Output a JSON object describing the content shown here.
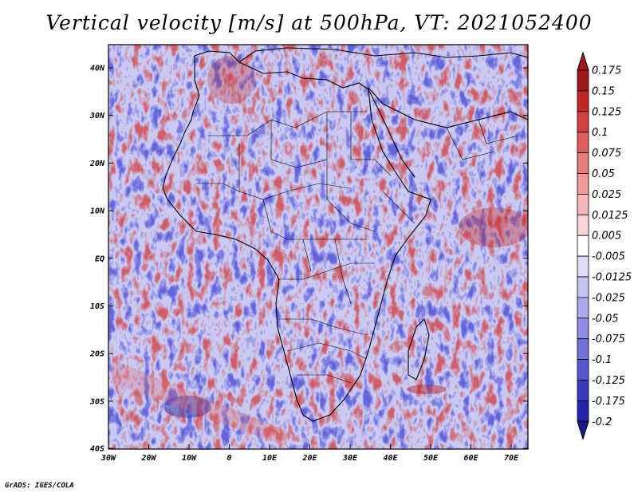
{
  "title": "Vertical velocity [m/s] at 500hPa, VT: 2021052400",
  "credit": "GrADS: IGES/COLA",
  "map": {
    "lat_ticks": [
      "40N",
      "30N",
      "20N",
      "10N",
      "EQ",
      "10S",
      "20S",
      "30S",
      "40S"
    ],
    "lon_ticks": [
      "30W",
      "20W",
      "10W",
      "0",
      "10E",
      "20E",
      "30E",
      "40E",
      "50E",
      "60E",
      "70E"
    ]
  },
  "colorbar": {
    "labels": [
      "0.175",
      "0.15",
      "0.125",
      "0.1",
      "0.075",
      "0.05",
      "0.025",
      "0.0125",
      "0.005",
      "-0.005",
      "-0.0125",
      "-0.025",
      "-0.05",
      "-0.075",
      "-0.1",
      "-0.125",
      "-0.175",
      "-0.2"
    ],
    "colors": [
      "#a01818",
      "#c02828",
      "#d24040",
      "#de5c5c",
      "#e67c7c",
      "#ee9a9a",
      "#f4b8b8",
      "#f9d4d4",
      "#ffffff",
      "#dcdcf7",
      "#c4c4f2",
      "#aaaaec",
      "#8e8ee4",
      "#7272da",
      "#5656ce",
      "#3a3abf",
      "#2424aa",
      "#1a1a8c"
    ]
  }
}
